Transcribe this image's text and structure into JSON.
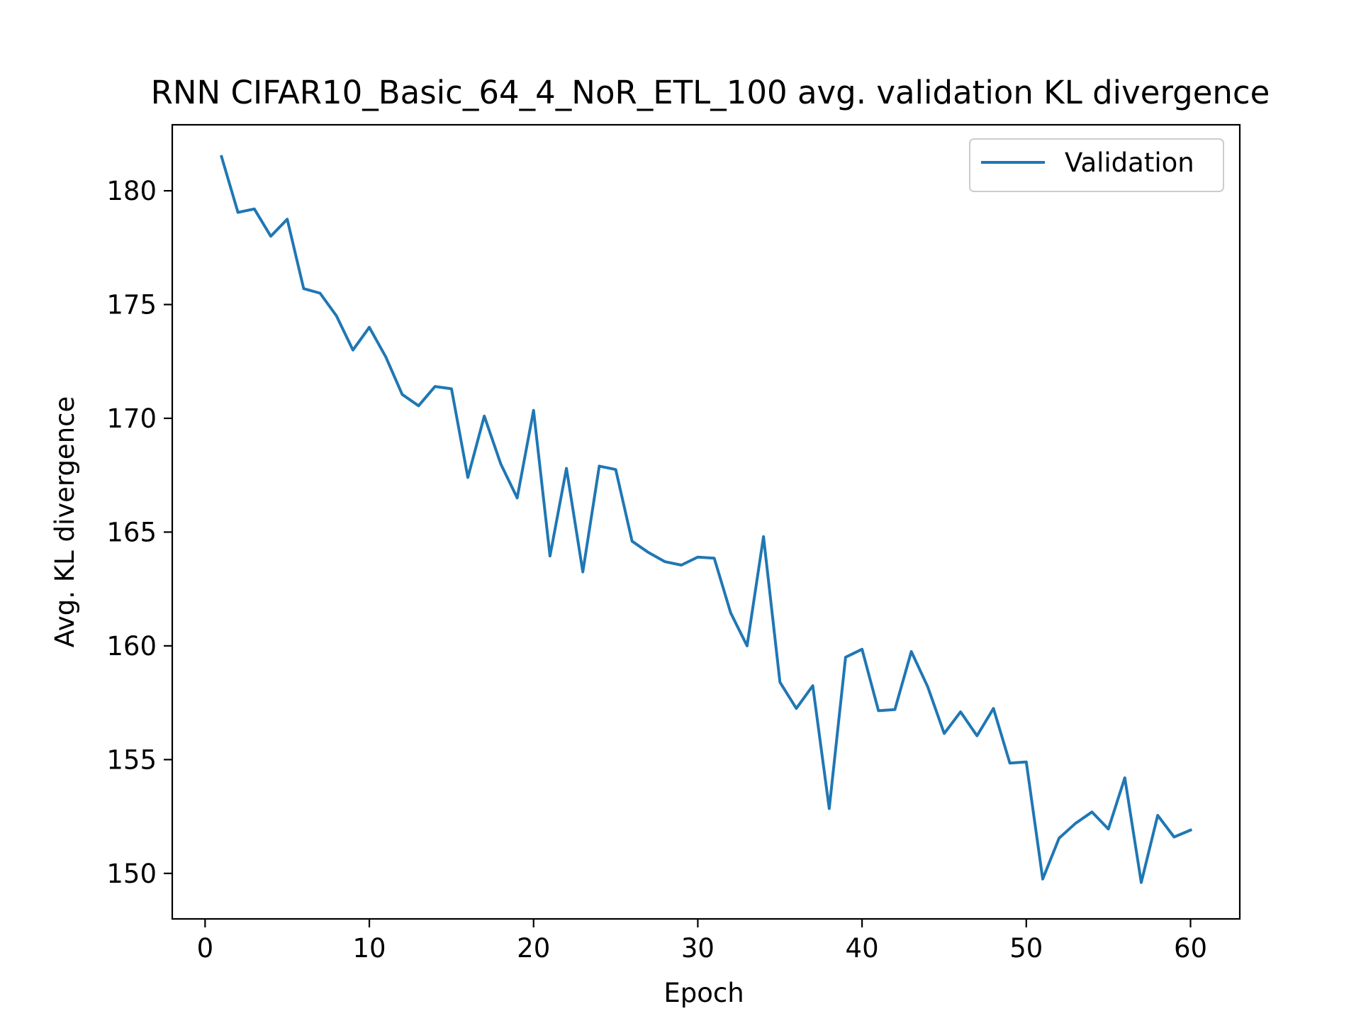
{
  "chart_data": {
    "type": "line",
    "title": "RNN CIFAR10_Basic_64_4_NoR_ETL_100 avg. validation KL divergence",
    "xlabel": "Epoch",
    "ylabel": "Avg. KL divergence",
    "xlim": [
      -2,
      63
    ],
    "ylim": [
      148.0,
      182.9
    ],
    "xticks": [
      0,
      10,
      20,
      30,
      40,
      50,
      60
    ],
    "yticks": [
      150,
      155,
      160,
      165,
      170,
      175,
      180
    ],
    "grid": false,
    "legend": "top-right",
    "series": [
      {
        "name": "Validation",
        "color": "#1f77b4",
        "x": [
          1,
          2,
          3,
          4,
          5,
          6,
          7,
          8,
          9,
          10,
          11,
          12,
          13,
          14,
          15,
          16,
          17,
          18,
          19,
          20,
          21,
          22,
          23,
          24,
          25,
          26,
          27,
          28,
          29,
          30,
          31,
          32,
          33,
          34,
          35,
          36,
          37,
          38,
          39,
          40,
          41,
          42,
          43,
          44,
          45,
          46,
          47,
          48,
          49,
          50,
          51,
          52,
          53,
          54,
          55,
          56,
          57,
          58,
          59,
          60
        ],
        "values": [
          181.5,
          179.05,
          179.2,
          178.0,
          178.75,
          175.7,
          175.5,
          174.5,
          173.0,
          174.0,
          172.7,
          171.05,
          170.55,
          171.4,
          171.3,
          167.4,
          170.1,
          168.0,
          166.5,
          170.35,
          163.95,
          167.8,
          163.25,
          167.9,
          167.75,
          164.6,
          164.1,
          163.7,
          163.55,
          163.9,
          163.85,
          161.45,
          160.0,
          164.8,
          158.4,
          157.25,
          158.25,
          152.85,
          159.5,
          159.85,
          157.15,
          157.2,
          159.75,
          158.2,
          156.15,
          157.1,
          156.05,
          157.25,
          154.85,
          154.9,
          149.75,
          151.55,
          152.2,
          152.7,
          151.95,
          154.2,
          149.6,
          152.55,
          151.6,
          151.9
        ]
      }
    ]
  }
}
